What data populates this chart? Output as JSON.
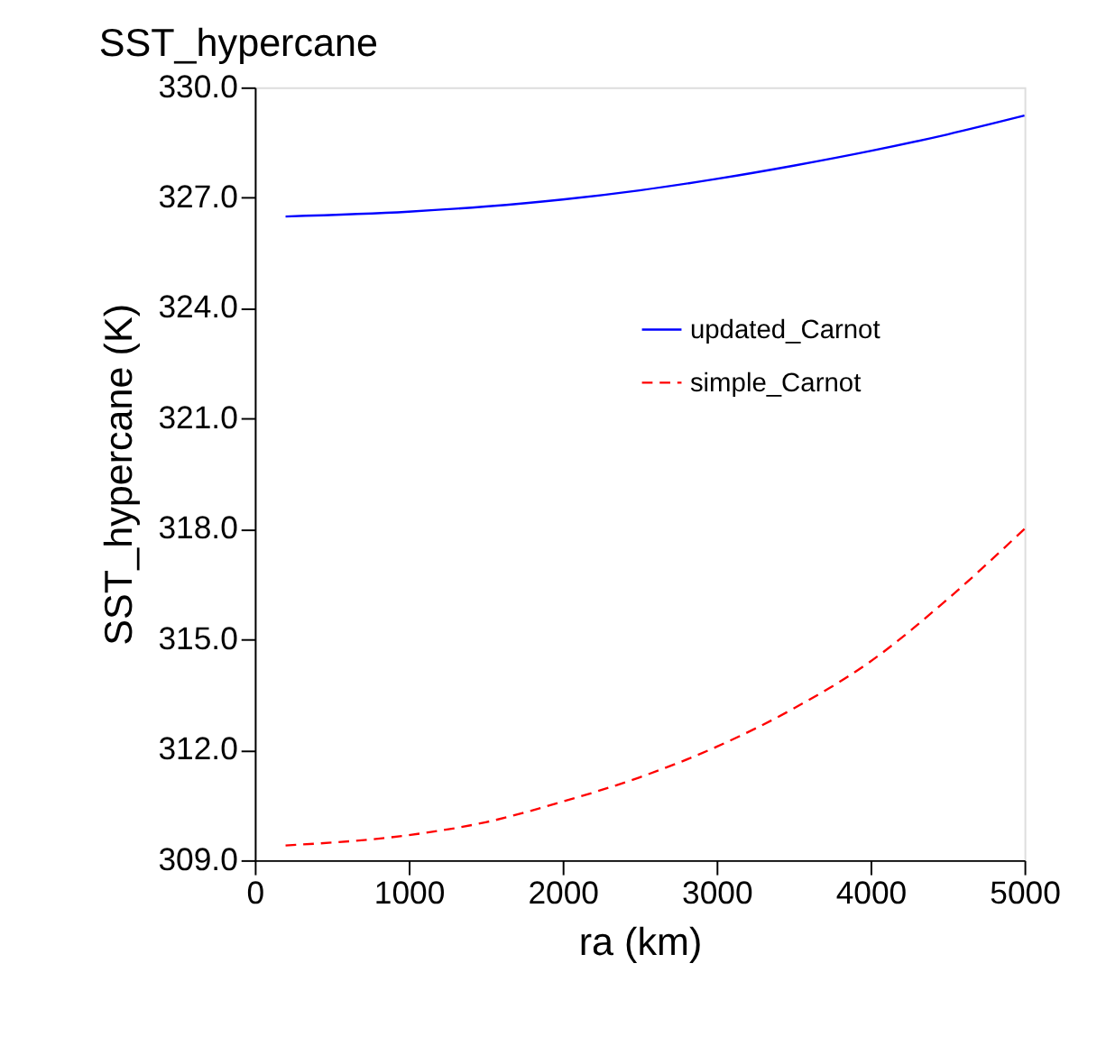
{
  "chart_data": {
    "type": "line",
    "title": "SST_hypercane",
    "xlabel": "ra (km)",
    "ylabel": "SST_hypercane (K)",
    "x": [
      200,
      1000,
      1500,
      2000,
      2500,
      3000,
      3500,
      4000,
      4500,
      5000
    ],
    "series": [
      {
        "name": "updated_Carnot",
        "color": "#0000ff",
        "line_style": "solid",
        "values": [
          326.49,
          326.62,
          326.76,
          326.95,
          327.2,
          327.51,
          327.87,
          328.27,
          328.72,
          329.23
        ]
      },
      {
        "name": "simple_Carnot",
        "color": "#ff0000",
        "line_style": "dashed",
        "values": [
          309.4,
          309.68,
          310.03,
          310.59,
          311.25,
          312.08,
          313.12,
          314.4,
          316.09,
          318.0
        ]
      }
    ],
    "xlim": [
      0,
      5000
    ],
    "xticks": [
      0,
      1000,
      2000,
      3000,
      4000,
      5000
    ],
    "ylim": [
      309,
      330
    ],
    "yticks": [
      {
        "value": 309,
        "label": "309.0"
      },
      {
        "value": 312,
        "label": "312.0"
      },
      {
        "value": 315,
        "label": "315.0"
      },
      {
        "value": 318,
        "label": "318.0"
      },
      {
        "value": 321,
        "label": "321.0"
      },
      {
        "value": 324,
        "label": "324.0"
      },
      {
        "value": 327,
        "label": "327.0"
      },
      {
        "value": 330,
        "label": "330.0"
      }
    ],
    "grid": false,
    "legend": "top right",
    "marker": "none"
  }
}
